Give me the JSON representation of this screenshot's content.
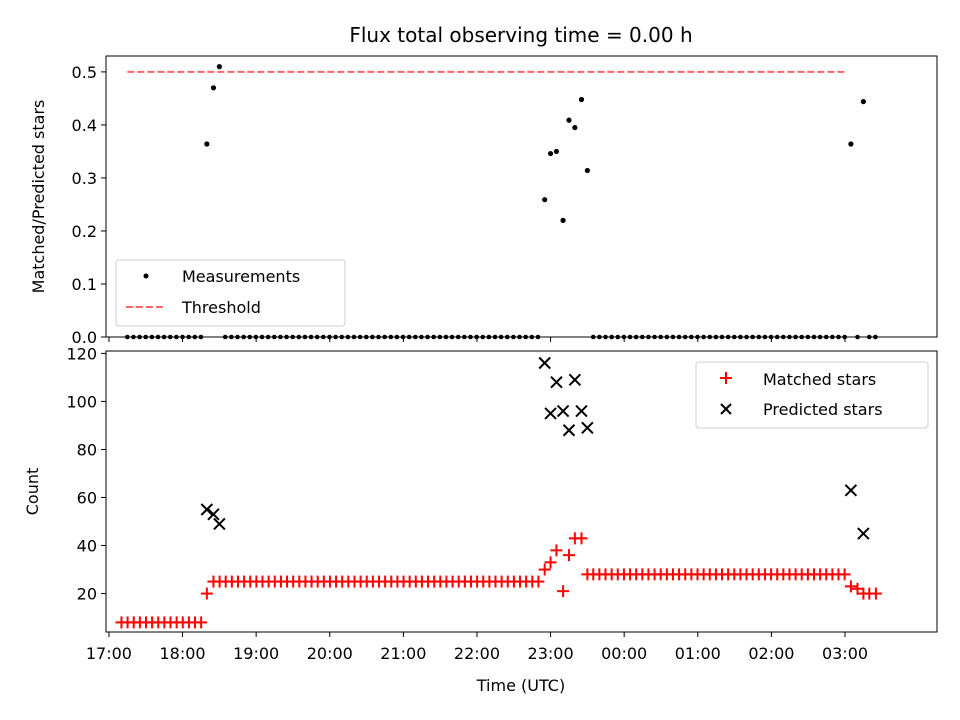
{
  "chart_data": [
    {
      "type": "scatter",
      "title": "Flux total observing time = 0.00 h",
      "xlabel": "",
      "ylabel": "Matched/Predicted stars",
      "ylim": [
        0,
        0.53
      ],
      "yticks": [
        0.0,
        0.1,
        0.2,
        0.3,
        0.4,
        0.5
      ],
      "ytick_labels": [
        "0.0",
        "0.1",
        "0.2",
        "0.3",
        "0.4",
        "0.5"
      ],
      "legend": {
        "position": "lower-left",
        "entries": [
          "Measurements",
          "Threshold"
        ]
      },
      "threshold": {
        "name": "Threshold",
        "value": 0.5,
        "color": "#ff6666",
        "x_start": 17.25,
        "x_end": 27.0
      },
      "measurement_color": "#000000",
      "measurements": {
        "name": "Measurements",
        "points": [
          [
            18.33,
            0.364
          ],
          [
            18.42,
            0.47
          ],
          [
            18.5,
            0.51
          ],
          [
            22.92,
            0.259
          ],
          [
            23.0,
            0.346
          ],
          [
            23.08,
            0.35
          ],
          [
            23.17,
            0.22
          ],
          [
            23.25,
            0.409
          ],
          [
            23.33,
            0.395
          ],
          [
            23.42,
            0.448
          ],
          [
            23.5,
            0.314
          ],
          [
            27.08,
            0.364
          ],
          [
            27.25,
            0.444
          ]
        ],
        "zero_series": [
          {
            "x_start": 17.25,
            "x_end": 18.25,
            "step": 0.0833
          },
          {
            "x_start": 18.58,
            "x_end": 22.83,
            "step": 0.0833
          },
          {
            "x_start": 23.58,
            "x_end": 27.0,
            "step": 0.0833
          },
          {
            "x_start": 27.17,
            "x_end": 27.17,
            "step": 0.0833
          },
          {
            "x_start": 27.33,
            "x_end": 27.42,
            "step": 0.0833
          }
        ]
      }
    },
    {
      "type": "scatter",
      "title": "",
      "xlabel": "Time (UTC)",
      "ylabel": "Count",
      "xlim": [
        16.96,
        28.25
      ],
      "ylim": [
        4,
        121
      ],
      "yticks": [
        20,
        40,
        60,
        80,
        100,
        120
      ],
      "ytick_labels": [
        "20",
        "40",
        "60",
        "80",
        "100",
        "120"
      ],
      "xticks": [
        17,
        18,
        19,
        20,
        21,
        22,
        23,
        24,
        25,
        26,
        27
      ],
      "xtick_labels": [
        "17:00",
        "18:00",
        "19:00",
        "20:00",
        "21:00",
        "22:00",
        "23:00",
        "00:00",
        "01:00",
        "02:00",
        "03:00"
      ],
      "legend": {
        "position": "upper-right",
        "entries": [
          "Matched stars",
          "Predicted stars"
        ]
      },
      "matched": {
        "name": "Matched stars",
        "color": "#ff0000",
        "runs": [
          {
            "x_start": 17.17,
            "x_end": 18.25,
            "value": 8
          },
          {
            "x_start": 18.42,
            "x_end": 22.83,
            "value": 25
          },
          {
            "x_start": 23.58,
            "x_end": 27.0,
            "value": 28
          }
        ],
        "points": [
          [
            18.33,
            20
          ],
          [
            22.92,
            30
          ],
          [
            23.0,
            33
          ],
          [
            23.08,
            38
          ],
          [
            23.17,
            21
          ],
          [
            23.25,
            36
          ],
          [
            23.33,
            43
          ],
          [
            23.42,
            43
          ],
          [
            23.5,
            28
          ],
          [
            27.08,
            23
          ],
          [
            27.17,
            22
          ],
          [
            27.25,
            20
          ],
          [
            27.33,
            20
          ],
          [
            27.42,
            20
          ]
        ]
      },
      "predicted": {
        "name": "Predicted stars",
        "color": "#000000",
        "points": [
          [
            18.33,
            55
          ],
          [
            18.42,
            53
          ],
          [
            18.5,
            49
          ],
          [
            22.92,
            116
          ],
          [
            23.0,
            95
          ],
          [
            23.08,
            108
          ],
          [
            23.17,
            96
          ],
          [
            23.25,
            88
          ],
          [
            23.33,
            109
          ],
          [
            23.42,
            96
          ],
          [
            23.5,
            89
          ],
          [
            27.08,
            63
          ],
          [
            27.25,
            45
          ]
        ]
      }
    }
  ]
}
